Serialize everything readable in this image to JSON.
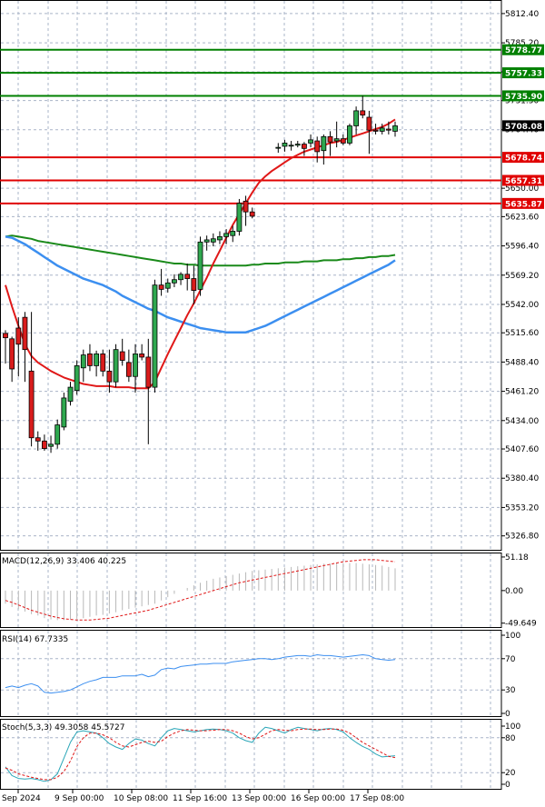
{
  "chart_data": {
    "type": "candlestick",
    "x_tick_labels": [
      "Sep 2024",
      "9 Sep 00:00",
      "10 Sep 08:00",
      "11 Sep 16:00",
      "13 Sep 00:00",
      "16 Sep 00:00",
      "17 Sep 08:00"
    ],
    "price_axis": {
      "range": [
        5313,
        5825
      ],
      "tick_labels": [
        "5812.40",
        "5785.20",
        "5758.20",
        "5731.50",
        "5704.40",
        "5650.00",
        "5623.60",
        "5596.40",
        "5569.20",
        "5542.00",
        "5515.60",
        "5488.40",
        "5461.20",
        "5434.00",
        "5407.60",
        "5380.40",
        "5353.20",
        "5326.80"
      ],
      "tick_values": [
        5812.4,
        5785.2,
        5758.2,
        5731.5,
        5704.4,
        5650.0,
        5623.6,
        5596.4,
        5569.2,
        5542.0,
        5515.6,
        5488.4,
        5461.2,
        5434.0,
        5407.6,
        5380.4,
        5353.2,
        5326.8
      ]
    },
    "levels": [
      {
        "label": "5778.77",
        "value": 5778.77,
        "color": "#008000"
      },
      {
        "label": "5757.33",
        "value": 5757.33,
        "color": "#008000"
      },
      {
        "label": "5735.90",
        "value": 5735.9,
        "color": "#008000"
      },
      {
        "label": "5678.74",
        "value": 5678.74,
        "color": "#e00000"
      },
      {
        "label": "5657.31",
        "value": 5657.31,
        "color": "#e00000"
      },
      {
        "label": "5635.87",
        "value": 5635.87,
        "color": "#e00000"
      }
    ],
    "current_price": {
      "label": "5708.08",
      "value": 5708.08
    },
    "candles": [
      {
        "o": 5515,
        "h": 5518,
        "l": 5487,
        "c": 5511
      },
      {
        "o": 5510,
        "h": 5512,
        "l": 5470,
        "c": 5482
      },
      {
        "o": 5520,
        "h": 5530,
        "l": 5475,
        "c": 5505
      },
      {
        "o": 5530,
        "h": 5535,
        "l": 5470,
        "c": 5500
      },
      {
        "o": 5480,
        "h": 5535,
        "l": 5410,
        "c": 5418
      },
      {
        "o": 5418,
        "h": 5424,
        "l": 5406,
        "c": 5415
      },
      {
        "o": 5415,
        "h": 5421,
        "l": 5406,
        "c": 5408
      },
      {
        "o": 5410,
        "h": 5420,
        "l": 5404,
        "c": 5412
      },
      {
        "o": 5412,
        "h": 5435,
        "l": 5408,
        "c": 5430
      },
      {
        "o": 5428,
        "h": 5460,
        "l": 5425,
        "c": 5455
      },
      {
        "o": 5452,
        "h": 5470,
        "l": 5448,
        "c": 5465
      },
      {
        "o": 5462,
        "h": 5490,
        "l": 5458,
        "c": 5485
      },
      {
        "o": 5483,
        "h": 5500,
        "l": 5470,
        "c": 5495
      },
      {
        "o": 5496,
        "h": 5505,
        "l": 5480,
        "c": 5485
      },
      {
        "o": 5485,
        "h": 5499,
        "l": 5475,
        "c": 5496
      },
      {
        "o": 5496,
        "h": 5500,
        "l": 5475,
        "c": 5480
      },
      {
        "o": 5480,
        "h": 5500,
        "l": 5460,
        "c": 5470
      },
      {
        "o": 5470,
        "h": 5505,
        "l": 5465,
        "c": 5500
      },
      {
        "o": 5498,
        "h": 5510,
        "l": 5485,
        "c": 5490
      },
      {
        "o": 5488,
        "h": 5500,
        "l": 5470,
        "c": 5475
      },
      {
        "o": 5475,
        "h": 5505,
        "l": 5460,
        "c": 5496
      },
      {
        "o": 5496,
        "h": 5505,
        "l": 5490,
        "c": 5493
      },
      {
        "o": 5493,
        "h": 5510,
        "l": 5412,
        "c": 5465
      },
      {
        "o": 5465,
        "h": 5565,
        "l": 5460,
        "c": 5560
      },
      {
        "o": 5560,
        "h": 5575,
        "l": 5550,
        "c": 5556
      },
      {
        "o": 5557,
        "h": 5566,
        "l": 5553,
        "c": 5562
      },
      {
        "o": 5562,
        "h": 5570,
        "l": 5558,
        "c": 5565
      },
      {
        "o": 5565,
        "h": 5572,
        "l": 5560,
        "c": 5570
      },
      {
        "o": 5570,
        "h": 5580,
        "l": 5555,
        "c": 5566
      },
      {
        "o": 5566,
        "h": 5578,
        "l": 5542,
        "c": 5555
      },
      {
        "o": 5556,
        "h": 5605,
        "l": 5550,
        "c": 5600
      },
      {
        "o": 5600,
        "h": 5606,
        "l": 5592,
        "c": 5602
      },
      {
        "o": 5600,
        "h": 5608,
        "l": 5596,
        "c": 5603
      },
      {
        "o": 5602,
        "h": 5610,
        "l": 5598,
        "c": 5605
      },
      {
        "o": 5605,
        "h": 5612,
        "l": 5598,
        "c": 5608
      },
      {
        "o": 5606,
        "h": 5615,
        "l": 5600,
        "c": 5610
      },
      {
        "o": 5610,
        "h": 5640,
        "l": 5606,
        "c": 5636
      },
      {
        "o": 5638,
        "h": 5643,
        "l": 5615,
        "c": 5628
      },
      {
        "o": 5628,
        "h": 5632,
        "l": 5622,
        "c": 5624
      },
      null,
      null,
      null,
      {
        "o": 5688,
        "h": 5692,
        "l": 5683,
        "c": 5688
      },
      {
        "o": 5689,
        "h": 5695,
        "l": 5684,
        "c": 5692
      },
      {
        "o": 5690,
        "h": 5694,
        "l": 5685,
        "c": 5690
      },
      {
        "o": 5690,
        "h": 5694,
        "l": 5688,
        "c": 5691
      },
      {
        "o": 5691,
        "h": 5693,
        "l": 5680,
        "c": 5687
      },
      {
        "o": 5692,
        "h": 5700,
        "l": 5688,
        "c": 5695
      },
      {
        "o": 5694,
        "h": 5698,
        "l": 5674,
        "c": 5684
      },
      {
        "o": 5685,
        "h": 5700,
        "l": 5672,
        "c": 5698
      },
      {
        "o": 5698,
        "h": 5703,
        "l": 5680,
        "c": 5693
      },
      {
        "o": 5694,
        "h": 5712,
        "l": 5688,
        "c": 5696
      },
      {
        "o": 5696,
        "h": 5700,
        "l": 5690,
        "c": 5692
      },
      {
        "o": 5692,
        "h": 5710,
        "l": 5690,
        "c": 5708
      },
      {
        "o": 5708,
        "h": 5726,
        "l": 5700,
        "c": 5722
      },
      {
        "o": 5722,
        "h": 5736,
        "l": 5715,
        "c": 5718
      },
      {
        "o": 5716,
        "h": 5722,
        "l": 5682,
        "c": 5704
      },
      {
        "o": 5704,
        "h": 5710,
        "l": 5700,
        "c": 5703
      },
      {
        "o": 5703,
        "h": 5710,
        "l": 5700,
        "c": 5706
      },
      {
        "o": 5705,
        "h": 5712,
        "l": 5700,
        "c": 5704
      },
      {
        "o": 5703,
        "h": 5712,
        "l": 5698,
        "c": 5708
      }
    ],
    "ma_red": [
      5560,
      5540,
      5522,
      5505,
      5494,
      5488,
      5484,
      5480,
      5477,
      5474,
      5472,
      5470,
      5468,
      5467,
      5466,
      5466,
      5466,
      5465,
      5465,
      5465,
      5464,
      5464,
      5464,
      5470,
      5483,
      5496,
      5508,
      5520,
      5532,
      5543,
      5555,
      5567,
      5580,
      5592,
      5604,
      5616,
      5626,
      5636,
      5646,
      5655,
      5661,
      5666,
      5670,
      5674,
      5678,
      5681,
      5684,
      5686,
      5688,
      5690,
      5692,
      5693,
      5695,
      5697,
      5699,
      5701,
      5703,
      5705,
      5707,
      5710,
      5714
    ],
    "ma_blue": [
      5605,
      5604,
      5601,
      5598,
      5594,
      5590,
      5586,
      5582,
      5578,
      5575,
      5572,
      5569,
      5566,
      5564,
      5562,
      5560,
      5557,
      5554,
      5550,
      5547,
      5544,
      5541,
      5538,
      5536,
      5533,
      5530,
      5528,
      5526,
      5524,
      5522,
      5520,
      5519,
      5518,
      5517,
      5516,
      5516,
      5516,
      5516,
      5518,
      5520,
      5522,
      5525,
      5528,
      5531,
      5534,
      5537,
      5540,
      5543,
      5546,
      5549,
      5552,
      5555,
      5558,
      5561,
      5564,
      5567,
      5570,
      5573,
      5576,
      5579,
      5583
    ],
    "ma_green": [
      5605,
      5606,
      5605,
      5604,
      5603,
      5601,
      5600,
      5599,
      5598,
      5597,
      5596,
      5595,
      5594,
      5593,
      5592,
      5591,
      5590,
      5589,
      5588,
      5587,
      5586,
      5585,
      5584,
      5583,
      5582,
      5581,
      5580,
      5580,
      5579,
      5579,
      5578,
      5578,
      5578,
      5578,
      5578,
      5578,
      5578,
      5578,
      5579,
      5579,
      5580,
      5580,
      5580,
      5581,
      5581,
      5581,
      5582,
      5582,
      5582,
      5583,
      5583,
      5583,
      5584,
      5584,
      5585,
      5585,
      5586,
      5586,
      5587,
      5587,
      5588
    ],
    "macd": {
      "label": "MACD(12,26,9) 33.406 40.225",
      "range": [
        -57,
        58
      ],
      "tick_labels": [
        "51.18",
        "0.00",
        "-49.649"
      ],
      "tick_values": [
        51.18,
        0,
        -49.649
      ],
      "histogram": [
        -20,
        -25,
        -28,
        -32,
        -36,
        -38,
        -42,
        -44,
        -45,
        -45,
        -44,
        -43,
        -42,
        -40,
        -38,
        -37,
        -35,
        -33,
        -30,
        -28,
        -26,
        -24,
        -22,
        -20,
        -15,
        -10,
        -5,
        0,
        4,
        8,
        12,
        15,
        18,
        20,
        22,
        24,
        26,
        28,
        30,
        31,
        32,
        33,
        34,
        35,
        36,
        37,
        38,
        39,
        40,
        41,
        41,
        42,
        42,
        42,
        42,
        41,
        40,
        39,
        38,
        36,
        34
      ],
      "signal": [
        -15,
        -18,
        -22,
        -26,
        -30,
        -33,
        -36,
        -39,
        -41,
        -43,
        -44,
        -45,
        -45,
        -45,
        -44,
        -43,
        -42,
        -40,
        -38,
        -36,
        -34,
        -32,
        -30,
        -27,
        -24,
        -21,
        -18,
        -15,
        -12,
        -9,
        -6,
        -3,
        0,
        3,
        6,
        9,
        12,
        14,
        16,
        18,
        20,
        22,
        24,
        26,
        28,
        30,
        32,
        34,
        36,
        38,
        40,
        42,
        44,
        45,
        46,
        47,
        47,
        47,
        46,
        45,
        44
      ]
    },
    "rsi": {
      "label": "RSI(14) 67.7335",
      "range": [
        0,
        100
      ],
      "tick_labels": [
        "100",
        "70",
        "30",
        "0"
      ],
      "tick_values": [
        100,
        70,
        30,
        0
      ],
      "values": [
        33,
        35,
        33,
        36,
        38,
        35,
        27,
        26,
        27,
        28,
        30,
        34,
        38,
        41,
        43,
        46,
        46,
        46,
        48,
        48,
        48,
        50,
        47,
        49,
        56,
        58,
        57,
        60,
        61,
        62,
        63,
        63,
        64,
        64,
        64,
        66,
        67,
        68,
        69,
        70,
        70,
        69,
        70,
        72,
        73,
        74,
        74,
        73,
        75,
        74,
        74,
        73,
        72,
        73,
        74,
        75,
        74,
        70,
        69,
        68,
        69
      ]
    },
    "stoch": {
      "label": "Stoch(5,3,3) 49.3058 45.5727",
      "range": [
        0,
        100
      ],
      "tick_labels": [
        "100",
        "80",
        "20",
        "0"
      ],
      "tick_values": [
        100,
        80,
        20,
        0
      ],
      "k": [
        30,
        15,
        10,
        9,
        10,
        8,
        5,
        8,
        18,
        45,
        72,
        90,
        92,
        90,
        88,
        80,
        70,
        64,
        60,
        70,
        78,
        76,
        70,
        66,
        80,
        92,
        96,
        94,
        92,
        90,
        92,
        94,
        95,
        94,
        92,
        88,
        80,
        75,
        72,
        88,
        98,
        96,
        92,
        88,
        94,
        98,
        96,
        94,
        92,
        95,
        96,
        94,
        90,
        80,
        72,
        65,
        60,
        52,
        47,
        48,
        49
      ],
      "d": [
        28,
        24,
        18,
        15,
        12,
        10,
        8,
        8,
        12,
        22,
        40,
        65,
        80,
        88,
        88,
        85,
        80,
        72,
        66,
        64,
        68,
        72,
        74,
        72,
        74,
        82,
        88,
        92,
        94,
        93,
        92,
        92,
        93,
        94,
        94,
        92,
        88,
        82,
        78,
        80,
        86,
        92,
        94,
        93,
        92,
        94,
        95,
        95,
        94,
        94,
        95,
        95,
        93,
        88,
        80,
        72,
        66,
        60,
        54,
        48,
        46
      ]
    }
  }
}
